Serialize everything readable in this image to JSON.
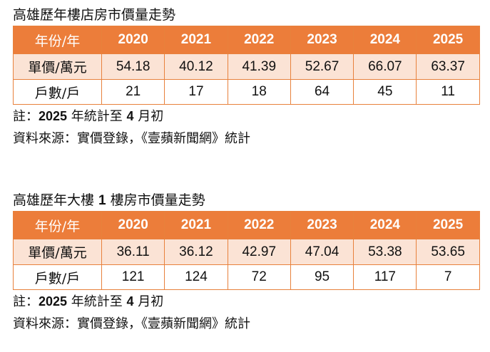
{
  "colors": {
    "header_bg": "#ec7d3a",
    "price_row_bg": "#fbe3d5",
    "border": "#e8813c"
  },
  "tables": [
    {
      "title": "高雄歷年樓店房市價量走勢",
      "header_label": "年份/年",
      "years": [
        "2020",
        "2021",
        "2022",
        "2023",
        "2024",
        "2025"
      ],
      "price_label": "單價/萬元",
      "prices": [
        "54.18",
        "40.12",
        "41.39",
        "52.67",
        "66.07",
        "63.37"
      ],
      "count_label": "戶數/戶",
      "counts": [
        "21",
        "17",
        "18",
        "64",
        "45",
        "11"
      ],
      "note": {
        "prefix": "註：",
        "year": "2025",
        "mid": " 年統計至 ",
        "month": "4",
        "suffix": " 月初"
      },
      "source": "資料來源：實價登錄，《壹蘋新聞網》統計"
    },
    {
      "title_prefix": "高雄歷年大樓 ",
      "title_floor": "1",
      "title_suffix": " 樓房市價量走勢",
      "header_label": "年份/年",
      "years": [
        "2020",
        "2021",
        "2022",
        "2023",
        "2024",
        "2025"
      ],
      "price_label": "單價/萬元",
      "prices": [
        "36.11",
        "36.12",
        "42.97",
        "47.04",
        "53.38",
        "53.65"
      ],
      "count_label": "戶數/戶",
      "counts": [
        "121",
        "124",
        "72",
        "95",
        "117",
        "7"
      ],
      "note": {
        "prefix": "註：",
        "year": "2025",
        "mid": " 年統計至 ",
        "month": "4",
        "suffix": " 月初"
      },
      "source": "資料來源：實價登錄，《壹蘋新聞網》統計"
    }
  ]
}
